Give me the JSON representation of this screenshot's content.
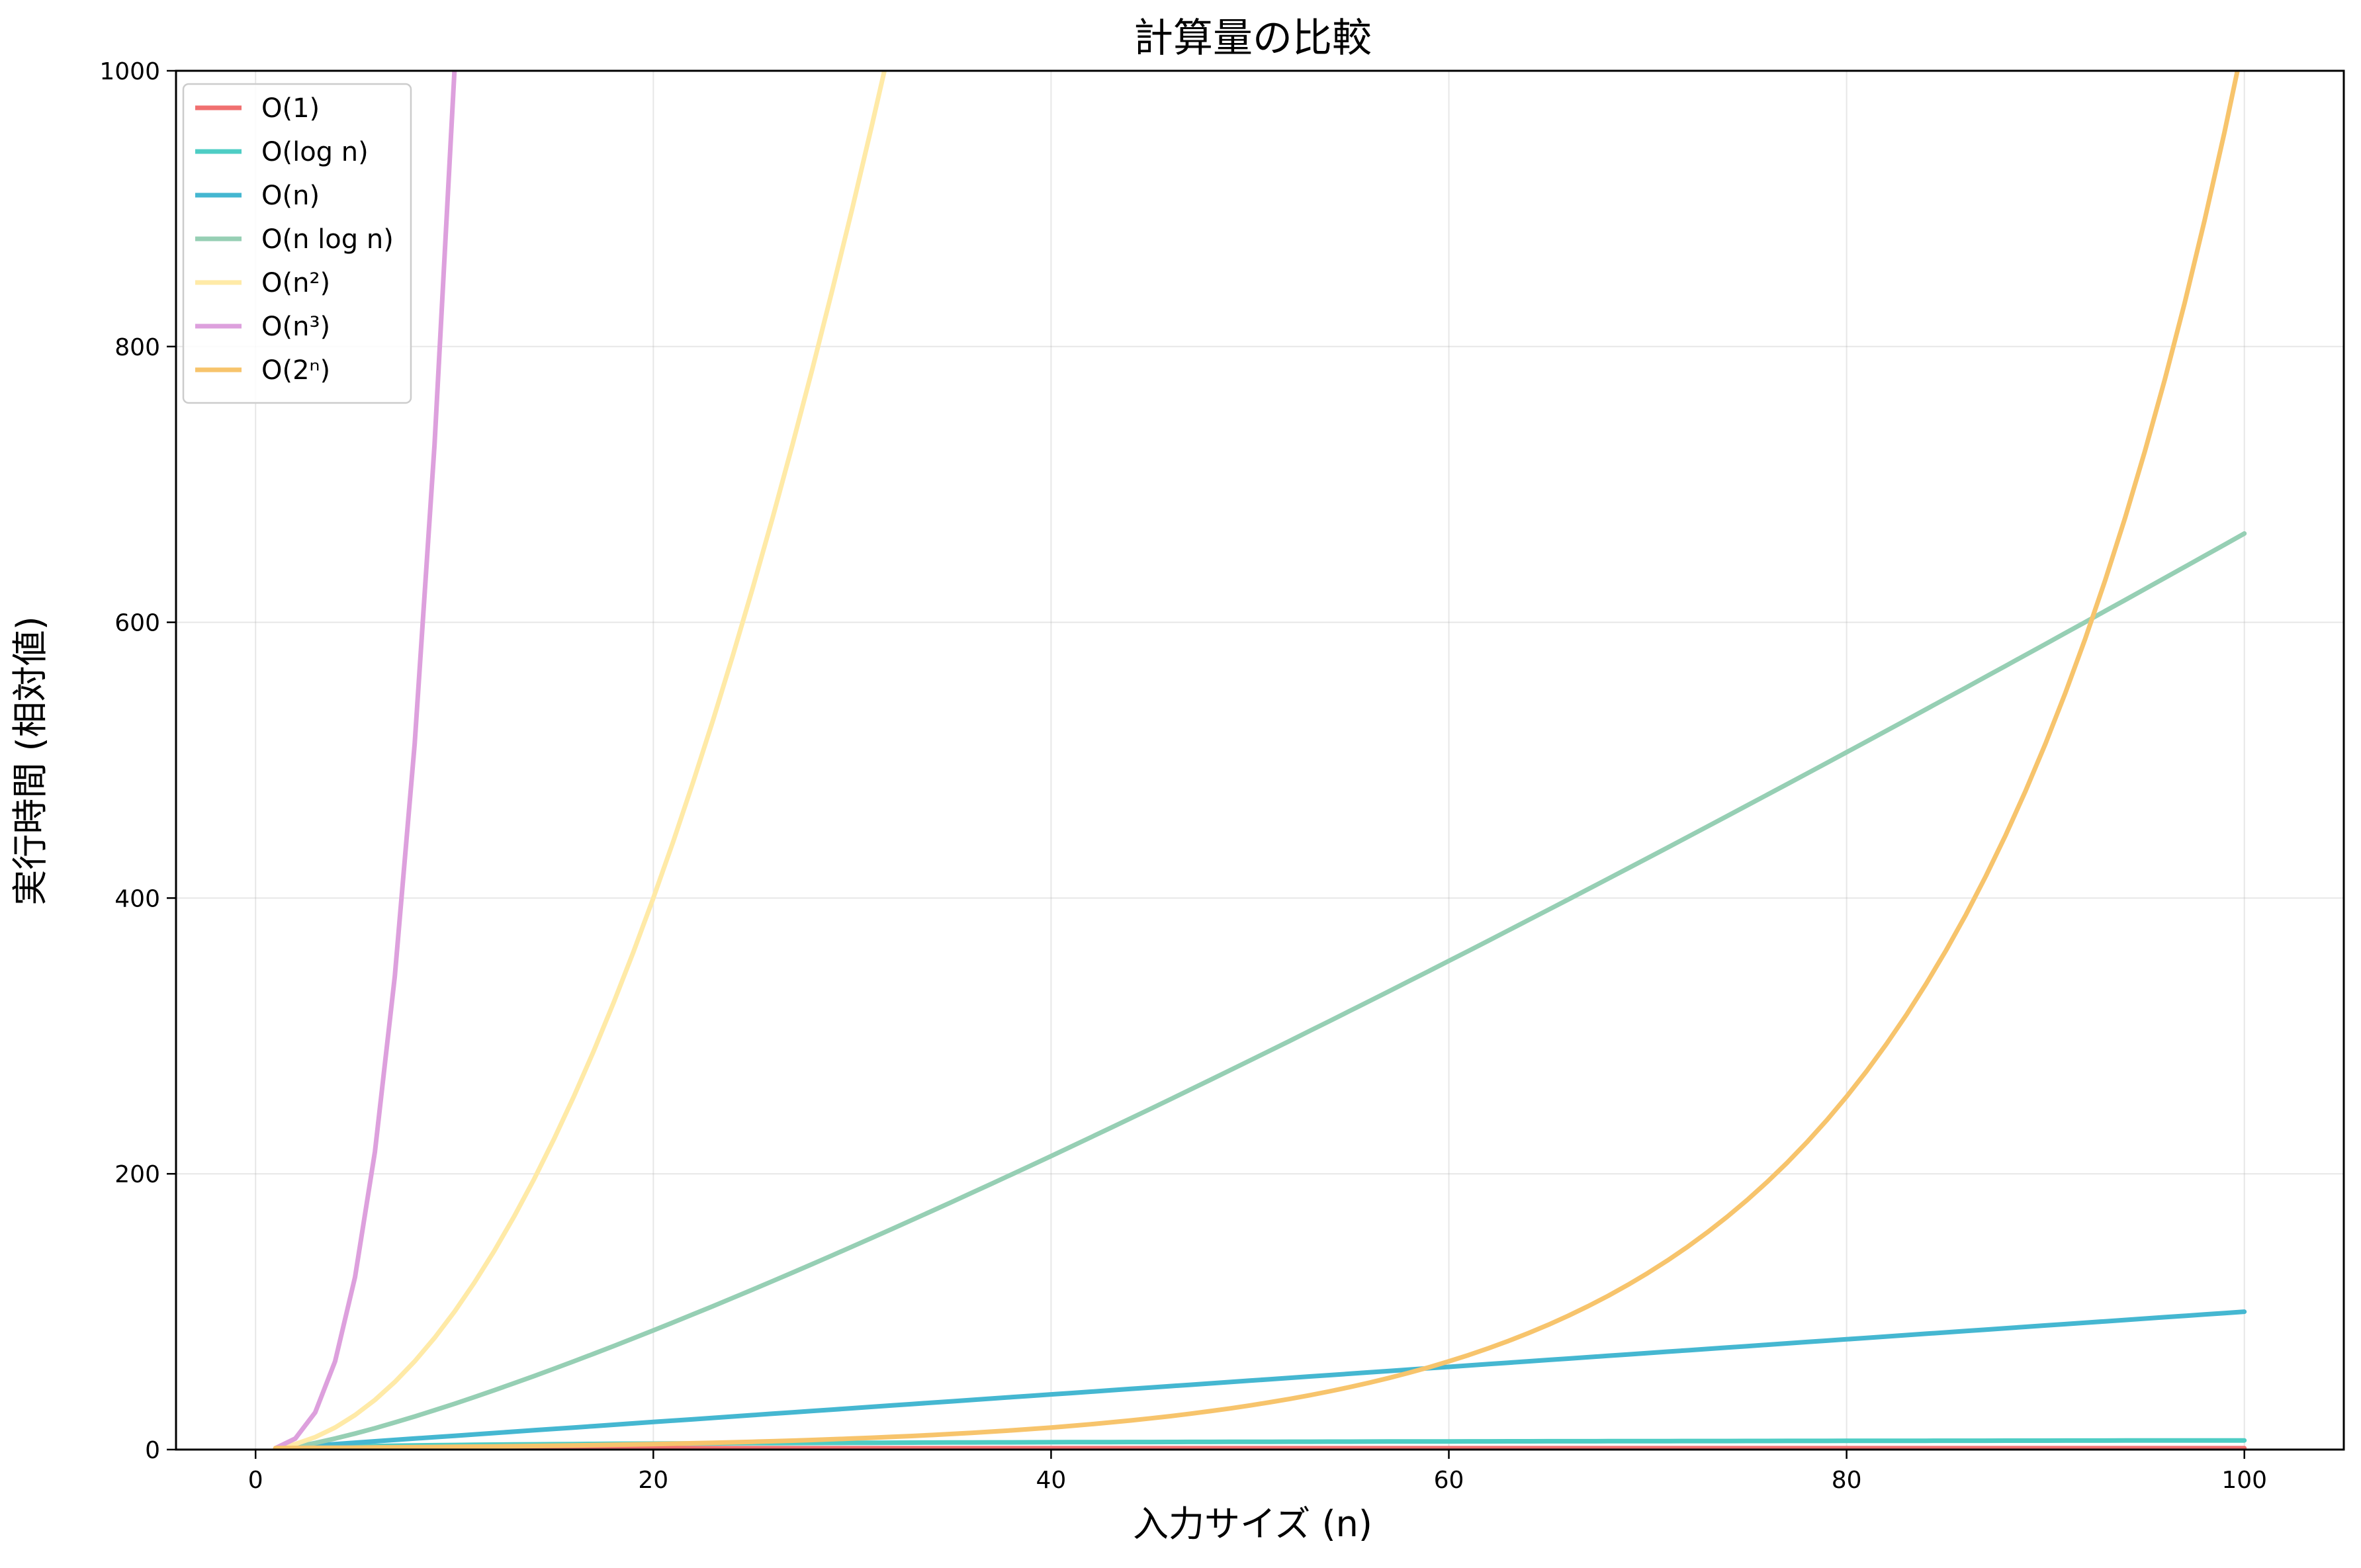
{
  "chart_data": {
    "type": "line",
    "title": "計算量の比較",
    "xlabel": "入力サイズ (n)",
    "ylabel": "実行時間 (相対値)",
    "xlim": [
      -4,
      105
    ],
    "ylim": [
      0,
      1000
    ],
    "xticks": [
      0,
      20,
      40,
      60,
      80,
      100
    ],
    "yticks": [
      0,
      200,
      400,
      600,
      800,
      1000
    ],
    "xtick_labels": [
      "0",
      "20",
      "40",
      "60",
      "80",
      "100"
    ],
    "ytick_labels": [
      "0",
      "200",
      "400",
      "600",
      "800",
      "1000"
    ],
    "grid": true,
    "legend_position": "top-left",
    "n_range": [
      1,
      100
    ],
    "series": [
      {
        "name": "O(1)",
        "kind": "constant",
        "color": "#f07070",
        "x": [
          1,
          100
        ],
        "y": [
          1,
          1
        ]
      },
      {
        "name": "O(log n)",
        "kind": "log2",
        "color": "#4ecdc4",
        "x": [
          1,
          2,
          5,
          10,
          20,
          50,
          100
        ],
        "y": [
          0,
          1,
          2.32,
          3.32,
          4.32,
          5.64,
          6.64
        ]
      },
      {
        "name": "O(n)",
        "kind": "linear",
        "color": "#45b7d1",
        "x": [
          1,
          100
        ],
        "y": [
          1,
          100
        ]
      },
      {
        "name": "O(n log n)",
        "kind": "nlog2n",
        "color": "#96cfb4",
        "x": [
          1,
          10,
          20,
          40,
          60,
          80,
          100
        ],
        "y": [
          0,
          33.2,
          86.4,
          212.9,
          354.4,
          505.8,
          664.4
        ]
      },
      {
        "name": "O(n²)",
        "kind": "quadratic",
        "color": "#ffeaa7",
        "x": [
          1,
          10,
          20,
          30,
          31.6
        ],
        "y": [
          1,
          100,
          400,
          900,
          1000
        ]
      },
      {
        "name": "O(n³)",
        "kind": "cubic",
        "color": "#dda0dd",
        "x": [
          1,
          2,
          4,
          6,
          8,
          10
        ],
        "y": [
          1,
          8,
          64,
          216,
          512,
          1000
        ]
      },
      {
        "name": "O(2ⁿ)",
        "kind": "exp_scaled",
        "color": "#f7c46c",
        "x": [
          20,
          40,
          60,
          80,
          90,
          100
        ],
        "y": [
          4,
          16,
          63,
          252,
          504,
          1000
        ]
      }
    ]
  }
}
